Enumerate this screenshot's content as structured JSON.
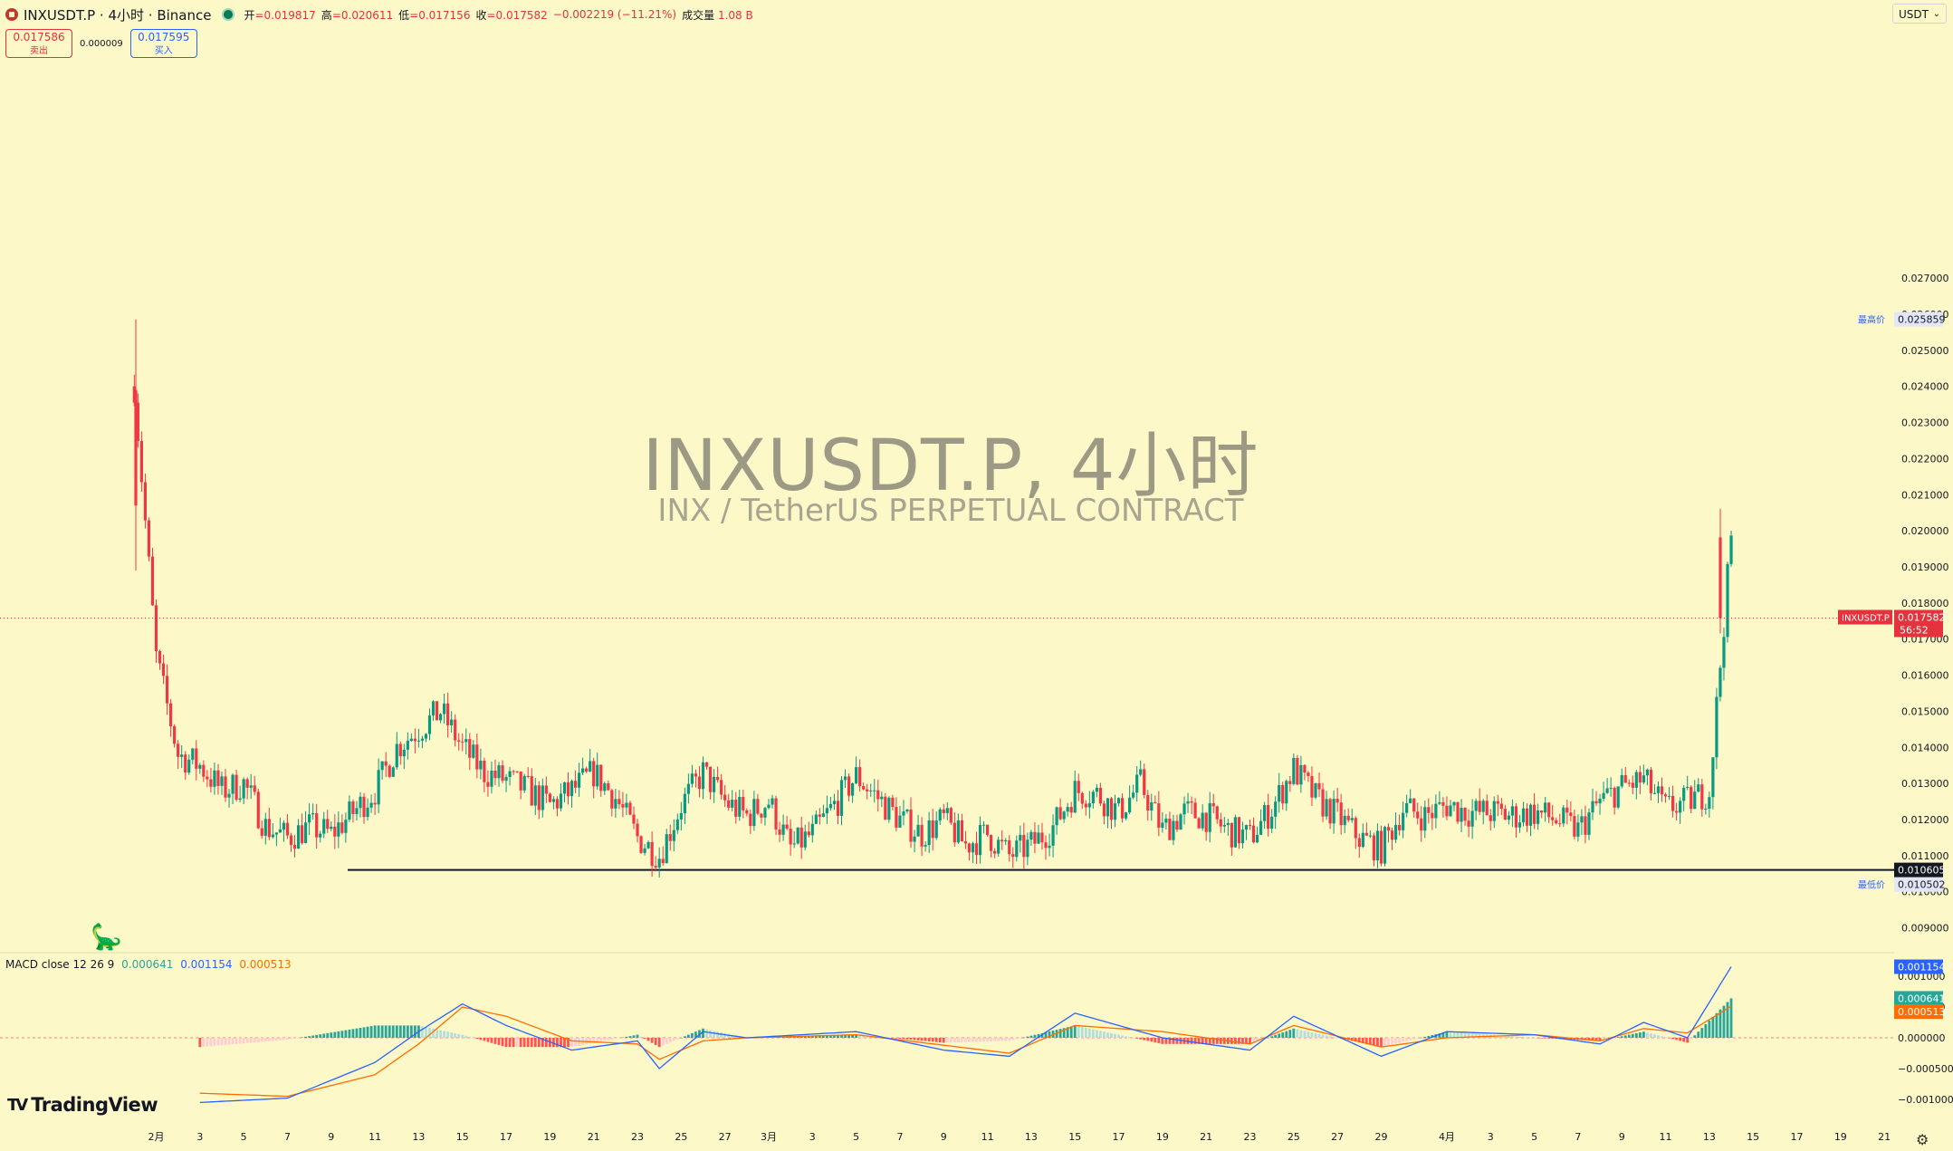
{
  "header": {
    "symbol_title": "INXUSDT.P · 4小时 · Binance",
    "open_label": "开",
    "open": "=0.019817",
    "high_label": "高",
    "high": "=0.020611",
    "low_label": "低",
    "low": "=0.017156",
    "close_label": "收",
    "close": "=0.017582",
    "change": "−0.002219 (−11.21%)",
    "volume_label": "成交量",
    "volume": "1.08 B"
  },
  "quote": {
    "sell_price": "0.017586",
    "sell_label": "卖出",
    "spread": "0.000009",
    "buy_price": "0.017595",
    "buy_label": "买入"
  },
  "currency": "USDT",
  "watermark": {
    "title": "INXUSDT.P, 4小时",
    "subtitle": "INX / TetherUS PERPETUAL CONTRACT"
  },
  "price_axis": {
    "ticks": [
      "0.027000",
      "0.026000",
      "0.025000",
      "0.024000",
      "0.023000",
      "0.022000",
      "0.021000",
      "0.020000",
      "0.019000",
      "0.018000",
      "0.017000",
      "0.016000",
      "0.015000",
      "0.014000",
      "0.013000",
      "0.012000",
      "0.011000",
      "0.010000",
      "0.009000"
    ],
    "high_marker_label": "最高价",
    "high_marker_value": "0.025859",
    "low_marker_label": "最低价",
    "low_marker_value": "0.010502",
    "current_symbol": "INXUSDT.P",
    "current_price": "0.017582",
    "countdown": "56:52",
    "line_price": "0.010605"
  },
  "macd": {
    "legend_name": "MACD close 12 26 9",
    "hist_value": "0.000641",
    "macd_value": "0.001154",
    "signal_value": "0.000513",
    "axis_ticks": [
      "0.001000",
      "0.000500",
      "0.000000",
      "−0.000500",
      "−0.001000"
    ]
  },
  "time_axis": {
    "ticks": [
      "2月",
      "3",
      "5",
      "7",
      "9",
      "11",
      "13",
      "15",
      "17",
      "19",
      "21",
      "23",
      "25",
      "27",
      "3月",
      "3",
      "5",
      "7",
      "9",
      "11",
      "13",
      "15",
      "17",
      "19",
      "21",
      "23",
      "25",
      "27",
      "29",
      "4月",
      "3",
      "5",
      "7",
      "9",
      "11",
      "13",
      "15",
      "17",
      "19",
      "21"
    ]
  },
  "brand": "TradingView",
  "colors": {
    "background": "#fdf8c8",
    "up": "#089981",
    "down": "#f23645",
    "macd_line": "#2962ff",
    "signal_line": "#ff6d00",
    "hist_up_strong": "#26a69a",
    "hist_up_weak": "#b2dfdb",
    "hist_down_strong": "#ff5252",
    "hist_down_weak": "#ffcdd2"
  },
  "icons": {
    "settings": "gear-icon",
    "dino": "dinosaur-icon"
  },
  "chart_data": {
    "type": "candlestick",
    "timeframe": "4h",
    "symbol": "INXUSDT.P",
    "ylim": [
      0.0088,
      0.0272
    ],
    "date_range": [
      "2025-01-31",
      "2025-04-13"
    ],
    "horizontal_line": 0.010605,
    "price_path": [
      [
        "01-31",
        0.024
      ],
      [
        "02-01",
        0.0165
      ],
      [
        "02-02",
        0.0138
      ],
      [
        "02-03",
        0.0135
      ],
      [
        "02-04",
        0.0128
      ],
      [
        "02-05",
        0.013
      ],
      [
        "02-06",
        0.0118
      ],
      [
        "02-07",
        0.0115
      ],
      [
        "02-08",
        0.0118
      ],
      [
        "02-09",
        0.0116
      ],
      [
        "02-10",
        0.0122
      ],
      [
        "02-11",
        0.0128
      ],
      [
        "02-12",
        0.014
      ],
      [
        "02-13",
        0.0145
      ],
      [
        "02-14",
        0.015
      ],
      [
        "02-15",
        0.014
      ],
      [
        "02-16",
        0.0133
      ],
      [
        "02-17",
        0.0131
      ],
      [
        "02-18",
        0.0128
      ],
      [
        "02-19",
        0.0124
      ],
      [
        "02-20",
        0.0128
      ],
      [
        "02-21",
        0.0133
      ],
      [
        "02-22",
        0.0126
      ],
      [
        "02-23",
        0.0115
      ],
      [
        "02-24",
        0.011
      ],
      [
        "02-25",
        0.0124
      ],
      [
        "02-26",
        0.0133
      ],
      [
        "02-27",
        0.0125
      ],
      [
        "02-28",
        0.0121
      ],
      [
        "03-01",
        0.0125
      ],
      [
        "03-02",
        0.0112
      ],
      [
        "03-03",
        0.0116
      ],
      [
        "03-04",
        0.0124
      ],
      [
        "03-05",
        0.0132
      ],
      [
        "03-06",
        0.0126
      ],
      [
        "03-07",
        0.012
      ],
      [
        "03-08",
        0.0116
      ],
      [
        "03-09",
        0.012
      ],
      [
        "03-10",
        0.0113
      ],
      [
        "03-11",
        0.0116
      ],
      [
        "03-12",
        0.011
      ],
      [
        "03-13",
        0.0113
      ],
      [
        "03-14",
        0.0118
      ],
      [
        "03-15",
        0.0128
      ],
      [
        "03-16",
        0.0127
      ],
      [
        "03-17",
        0.0122
      ],
      [
        "03-18",
        0.013
      ],
      [
        "03-19",
        0.0117
      ],
      [
        "03-20",
        0.0122
      ],
      [
        "03-21",
        0.0121
      ],
      [
        "03-22",
        0.0117
      ],
      [
        "03-23",
        0.0115
      ],
      [
        "03-24",
        0.0123
      ],
      [
        "03-25",
        0.0134
      ],
      [
        "03-26",
        0.0126
      ],
      [
        "03-27",
        0.0121
      ],
      [
        "03-28",
        0.0115
      ],
      [
        "03-29",
        0.0112
      ],
      [
        "03-30",
        0.0123
      ],
      [
        "03-31",
        0.0121
      ],
      [
        "04-01",
        0.0124
      ],
      [
        "04-02",
        0.0122
      ],
      [
        "04-03",
        0.0122
      ],
      [
        "04-04",
        0.0121
      ],
      [
        "04-05",
        0.0122
      ],
      [
        "04-06",
        0.012
      ],
      [
        "04-07",
        0.0117
      ],
      [
        "04-08",
        0.0125
      ],
      [
        "04-09",
        0.0129
      ],
      [
        "04-10",
        0.0131
      ],
      [
        "04-11",
        0.0123
      ],
      [
        "04-12",
        0.0125
      ],
      [
        "04-13",
        0.0128
      ],
      [
        "04-14",
        0.0198
      ],
      [
        "04-14",
        0.017582
      ]
    ],
    "macd_path": [
      [
        "02-03",
        -0.00105
      ],
      [
        "02-07",
        -0.00098
      ],
      [
        "02-11",
        -0.0004
      ],
      [
        "02-13",
        0.0001
      ],
      [
        "02-15",
        0.00055
      ],
      [
        "02-17",
        0.0002
      ],
      [
        "02-20",
        -0.0002
      ],
      [
        "02-23",
        -5e-05
      ],
      [
        "02-24",
        -0.0005
      ],
      [
        "02-26",
        0.0001
      ],
      [
        "02-28",
        0.0
      ],
      [
        "03-05",
        0.0001
      ],
      [
        "03-09",
        -0.0002
      ],
      [
        "03-12",
        -0.0003
      ],
      [
        "03-15",
        0.0004
      ],
      [
        "03-19",
        0.0
      ],
      [
        "03-23",
        -0.0002
      ],
      [
        "03-25",
        0.00035
      ],
      [
        "03-29",
        -0.0003
      ],
      [
        "04-01",
        0.0001
      ],
      [
        "04-05",
        5e-05
      ],
      [
        "04-08",
        -0.0001
      ],
      [
        "04-10",
        0.00025
      ],
      [
        "04-12",
        0.0
      ],
      [
        "04-14",
        0.001154
      ]
    ],
    "signal_path": [
      [
        "02-03",
        -0.0009
      ],
      [
        "02-07",
        -0.00095
      ],
      [
        "02-11",
        -0.0006
      ],
      [
        "02-13",
        -0.0001
      ],
      [
        "02-15",
        0.0005
      ],
      [
        "02-17",
        0.00035
      ],
      [
        "02-20",
        -5e-05
      ],
      [
        "02-23",
        -0.0001
      ],
      [
        "02-24",
        -0.00035
      ],
      [
        "02-26",
        -5e-05
      ],
      [
        "02-28",
        0.0
      ],
      [
        "03-05",
        5e-05
      ],
      [
        "03-09",
        -0.00012
      ],
      [
        "03-12",
        -0.00025
      ],
      [
        "03-15",
        0.0002
      ],
      [
        "03-19",
        0.0001
      ],
      [
        "03-23",
        -0.0001
      ],
      [
        "03-25",
        0.0002
      ],
      [
        "03-29",
        -0.00015
      ],
      [
        "04-01",
        0.0
      ],
      [
        "04-05",
        5e-05
      ],
      [
        "04-08",
        -5e-05
      ],
      [
        "04-10",
        0.00015
      ],
      [
        "04-12",
        8e-05
      ],
      [
        "04-14",
        0.000513
      ]
    ]
  }
}
